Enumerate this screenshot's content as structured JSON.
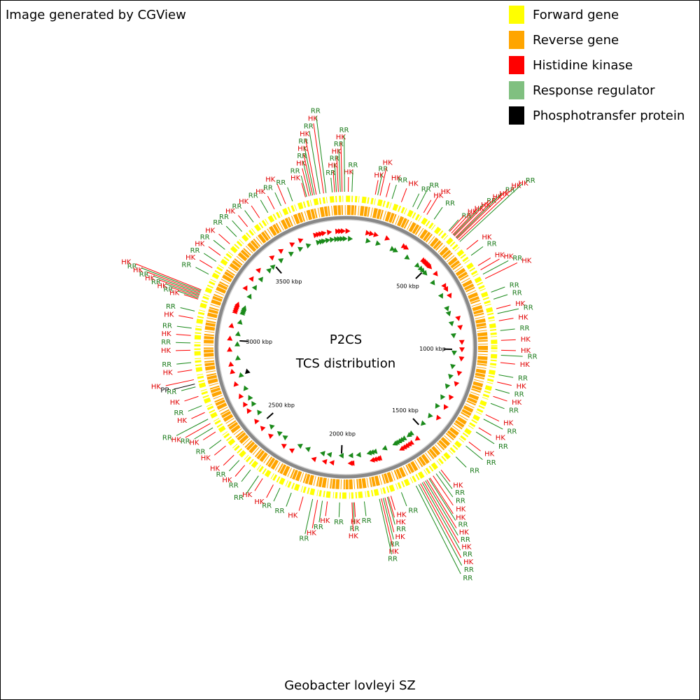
{
  "header": {
    "title": "Image generated by CGView"
  },
  "map": {
    "center_title": "P2CS",
    "center_subtitle": "TCS distribution",
    "caption": "Geobacter lovleyi SZ",
    "lim": [
      0,
      3950
    ],
    "ticks": [
      {
        "value": 500,
        "label": "500 kbp"
      },
      {
        "value": 1000,
        "label": "1000 kbp"
      },
      {
        "value": 1500,
        "label": "1500 kbp"
      },
      {
        "value": 2000,
        "label": "2000 kbp"
      },
      {
        "value": 2500,
        "label": "2500 kbp"
      },
      {
        "value": 3000,
        "label": "3000 kbp"
      },
      {
        "value": 3500,
        "label": "3500 kbp"
      }
    ],
    "legend": [
      {
        "label": "Forward gene",
        "color": "#ffff00"
      },
      {
        "label": "Reverse gene",
        "color": "#ffa500"
      },
      {
        "label": "Histidine kinase",
        "color": "#ff0000"
      },
      {
        "label": "Response regulator",
        "color": "#80c080"
      },
      {
        "label": "Phosphotransfer protein",
        "color": "#000000"
      }
    ],
    "feature_groups": [
      {
        "label": "HK",
        "color": "#ff0000",
        "mark_color": "#ff0000",
        "text_color": "#e00000",
        "kbp": [
          3785,
          3800,
          3815,
          3830,
          3860,
          3905,
          3920,
          3935,
          10,
          120,
          140,
          165,
          230,
          330,
          345,
          460,
          470,
          478,
          486,
          494,
          502,
          510,
          560,
          640,
          660,
          700,
          830,
          880,
          960,
          1000,
          1050,
          1130,
          1190,
          1270,
          1330,
          1400,
          1560,
          1600,
          1615,
          1630,
          1645,
          1660,
          1790,
          1800,
          1815,
          1830,
          1940,
          1950,
          2050,
          2090,
          2150,
          2280,
          2330,
          2420,
          2480,
          2530,
          2600,
          2640,
          2690,
          2760,
          2830,
          2870,
          2950,
          3010,
          3080,
          3160,
          3170,
          3180,
          3190,
          3200,
          3300,
          3360,
          3420,
          3520,
          3580,
          3650,
          3700
        ]
      },
      {
        "label": "RR",
        "color": "#1a8a1a",
        "mark_color": "#1a8a1a",
        "text_color": "#1a7a1a",
        "kbp": [
          3790,
          3808,
          3822,
          3845,
          3870,
          3895,
          3912,
          3928,
          3945,
          25,
          130,
          190,
          280,
          300,
          380,
          455,
          482,
          498,
          518,
          590,
          680,
          760,
          790,
          850,
          920,
          1020,
          1100,
          1160,
          1220,
          1290,
          1350,
          1420,
          1480,
          1570,
          1585,
          1620,
          1637,
          1652,
          1668,
          1680,
          1745,
          1805,
          1822,
          1838,
          1900,
          1945,
          2000,
          2070,
          2110,
          2200,
          2250,
          2350,
          2390,
          2450,
          2560,
          2620,
          2660,
          2720,
          2800,
          2900,
          2980,
          3040,
          3110,
          3165,
          3175,
          3185,
          3195,
          3270,
          3330,
          3390,
          3460,
          3490,
          3550,
          3620,
          3680,
          3730
        ]
      },
      {
        "label": "PP",
        "color": "#000000",
        "mark_color": "#000000",
        "text_color": "#000000",
        "kbp": [
          2812
        ]
      }
    ]
  }
}
